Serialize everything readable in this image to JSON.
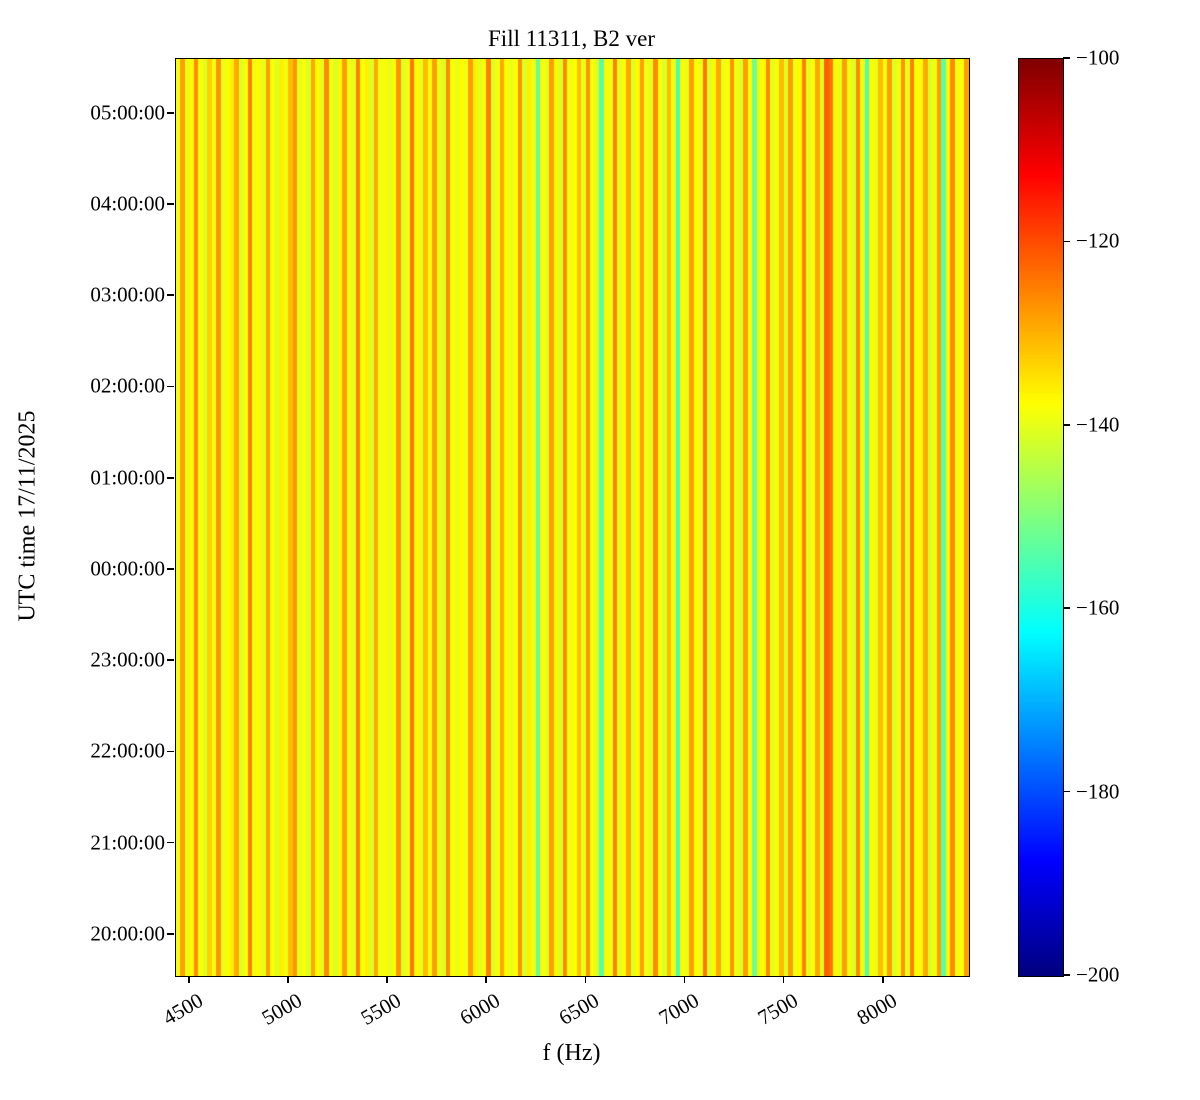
{
  "chart_data": {
    "type": "heatmap",
    "title": "Fill 11311, B2 ver",
    "xlabel": "f (Hz)",
    "ylabel": "UTC time 17/11/2025",
    "colormap": "jet",
    "grid": false,
    "x_range": [
      4430,
      8430
    ],
    "x_ticks": [
      {
        "value": 4500,
        "label": "4500"
      },
      {
        "value": 5000,
        "label": "5000"
      },
      {
        "value": 5500,
        "label": "5500"
      },
      {
        "value": 6000,
        "label": "6000"
      },
      {
        "value": 6500,
        "label": "6500"
      },
      {
        "value": 7000,
        "label": "7000"
      },
      {
        "value": 7500,
        "label": "7500"
      },
      {
        "value": 8000,
        "label": "8000"
      }
    ],
    "y_axis": {
      "min_hour": 19.55,
      "max_hour": 29.6,
      "ticks": [
        {
          "hour": 20,
          "label": "20:00:00"
        },
        {
          "hour": 21,
          "label": "21:00:00"
        },
        {
          "hour": 22,
          "label": "22:00:00"
        },
        {
          "hour": 23,
          "label": "23:00:00"
        },
        {
          "hour": 24,
          "label": "00:00:00"
        },
        {
          "hour": 25,
          "label": "01:00:00"
        },
        {
          "hour": 26,
          "label": "02:00:00"
        },
        {
          "hour": 27,
          "label": "03:00:00"
        },
        {
          "hour": 28,
          "label": "04:00:00"
        },
        {
          "hour": 29,
          "label": "05:00:00"
        }
      ]
    },
    "colorbar": {
      "vmin": -200,
      "vmax": -100,
      "ticks": [
        {
          "value": -100,
          "label": "−100"
        },
        {
          "value": -120,
          "label": "−120"
        },
        {
          "value": -140,
          "label": "−140"
        },
        {
          "value": -160,
          "label": "−160"
        },
        {
          "value": -180,
          "label": "−180"
        },
        {
          "value": -200,
          "label": "−200"
        }
      ]
    },
    "time_invariant_columns": true,
    "columns_db": [
      -139,
      -128,
      -140,
      -137,
      -126,
      -138,
      -141,
      -133,
      -139,
      -127,
      -140,
      -138,
      -136,
      -129,
      -141,
      -138,
      -125,
      -139,
      -137,
      -140,
      -128,
      -138,
      -141,
      -136,
      -139,
      -131,
      -127,
      -140,
      -138,
      -141,
      -129,
      -137,
      -140,
      -126,
      -138,
      -141,
      -137,
      -128,
      -139,
      -140,
      -125,
      -138,
      -136,
      -141,
      -129,
      -139,
      -137,
      -140,
      -138,
      -127,
      -141,
      -139,
      -124,
      -137,
      -140,
      -131,
      -138,
      -128,
      -139,
      -141,
      -126,
      -138,
      -140,
      -137,
      -139,
      -128,
      -136,
      -140,
      -138,
      -125,
      -141,
      -139,
      -129,
      -137,
      -140,
      -138,
      -127,
      -141,
      -136,
      -139,
      -153,
      -138,
      -140,
      -128,
      -137,
      -141,
      -126,
      -139,
      -138,
      -131,
      -140,
      -127,
      -138,
      -141,
      -154,
      -137,
      -139,
      -125,
      -140,
      -138,
      -129,
      -141,
      -137,
      -128,
      -139,
      -140,
      -126,
      -138,
      -141,
      -131,
      -139,
      -156,
      -137,
      -140,
      -128,
      -138,
      -139,
      -124,
      -141,
      -137,
      -129,
      -140,
      -138,
      -127,
      -139,
      -141,
      -128,
      -138,
      -152,
      -139,
      -137,
      -126,
      -140,
      -138,
      -131,
      -141,
      -128,
      -139,
      -137,
      -125,
      -140,
      -138,
      -129,
      -141,
      -122,
      -124,
      -137,
      -140,
      -128,
      -138,
      -141,
      -126,
      -139,
      -155,
      -137,
      -140,
      -131,
      -138,
      -128,
      -141,
      -139,
      -127,
      -140,
      -125,
      -138,
      -137,
      -129,
      -141,
      -139,
      -128,
      -154,
      -137,
      -126,
      -139,
      -138,
      -128
    ]
  }
}
